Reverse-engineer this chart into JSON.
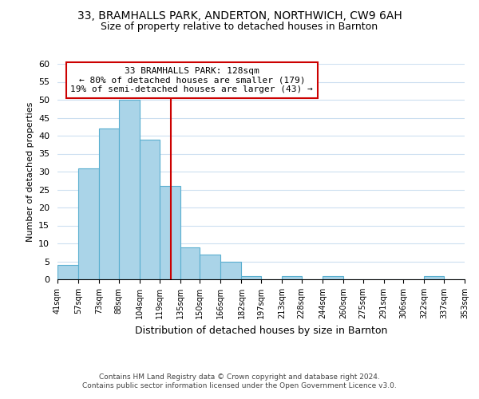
{
  "title": "33, BRAMHALLS PARK, ANDERTON, NORTHWICH, CW9 6AH",
  "subtitle": "Size of property relative to detached houses in Barnton",
  "xlabel": "Distribution of detached houses by size in Barnton",
  "ylabel": "Number of detached properties",
  "bar_edges": [
    41,
    57,
    73,
    88,
    104,
    119,
    135,
    150,
    166,
    182,
    197,
    213,
    228,
    244,
    260,
    275,
    291,
    306,
    322,
    337,
    353
  ],
  "bar_heights": [
    4,
    31,
    42,
    50,
    39,
    26,
    9,
    7,
    5,
    1,
    0,
    1,
    0,
    1,
    0,
    0,
    0,
    0,
    1,
    0
  ],
  "bar_color": "#aad4e8",
  "bar_edge_color": "#5aafd0",
  "property_line_x": 128,
  "property_line_color": "#cc0000",
  "annotation_text": "33 BRAMHALLS PARK: 128sqm\n← 80% of detached houses are smaller (179)\n19% of semi-detached houses are larger (43) →",
  "annotation_box_color": "#ffffff",
  "annotation_box_edge_color": "#cc0000",
  "ylim": [
    0,
    60
  ],
  "yticks": [
    0,
    5,
    10,
    15,
    20,
    25,
    30,
    35,
    40,
    45,
    50,
    55,
    60
  ],
  "tick_labels": [
    "41sqm",
    "57sqm",
    "73sqm",
    "88sqm",
    "104sqm",
    "119sqm",
    "135sqm",
    "150sqm",
    "166sqm",
    "182sqm",
    "197sqm",
    "213sqm",
    "228sqm",
    "244sqm",
    "260sqm",
    "275sqm",
    "291sqm",
    "306sqm",
    "322sqm",
    "337sqm",
    "353sqm"
  ],
  "footnote1": "Contains HM Land Registry data © Crown copyright and database right 2024.",
  "footnote2": "Contains public sector information licensed under the Open Government Licence v3.0.",
  "bg_color": "#ffffff",
  "grid_color": "#ccdff0"
}
